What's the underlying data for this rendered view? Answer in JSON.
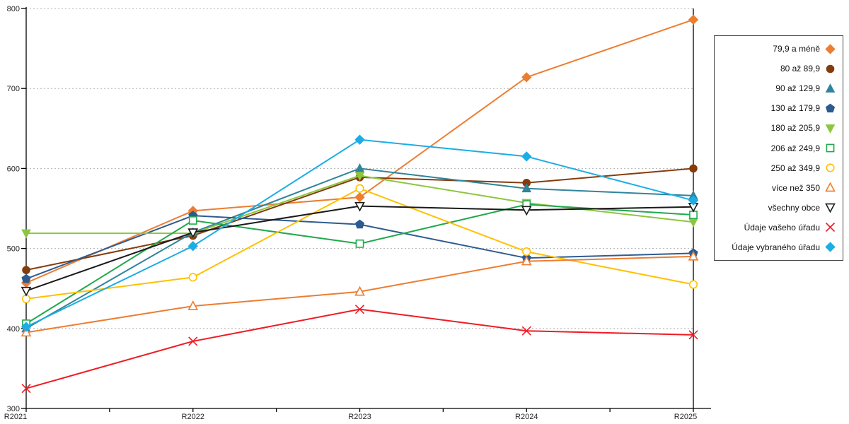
{
  "chart_data": {
    "type": "line",
    "title": "",
    "xlabel": "",
    "ylabel": "",
    "categories": [
      "R2021",
      "R2022",
      "R2023",
      "R2024",
      "R2025"
    ],
    "ylim": [
      300,
      800
    ],
    "y_ticks": [
      300,
      400,
      500,
      600,
      700,
      800
    ],
    "grid": "horizontal-dotted",
    "legend_position": "right",
    "series": [
      {
        "name": "79,9 a méně",
        "color": "#ED7D31",
        "marker": "diamond",
        "filled": true,
        "values": [
          457,
          547,
          564,
          714,
          786
        ]
      },
      {
        "name": "80 až 89,9",
        "color": "#843C0C",
        "marker": "circle",
        "filled": true,
        "values": [
          473,
          516,
          589,
          582,
          600
        ]
      },
      {
        "name": "90 až 129,9",
        "color": "#31849B",
        "marker": "triangle-up",
        "filled": true,
        "values": [
          400,
          520,
          600,
          575,
          566
        ]
      },
      {
        "name": "130 až 179,9",
        "color": "#2E5B8F",
        "marker": "pentagon",
        "filled": true,
        "values": [
          462,
          541,
          530,
          488,
          494
        ]
      },
      {
        "name": "180 až 205,9",
        "color": "#8CC63F",
        "marker": "triangle-down",
        "filled": true,
        "values": [
          519,
          519,
          591,
          557,
          533
        ]
      },
      {
        "name": "206 až 249,9",
        "color": "#21A94D",
        "marker": "square",
        "filled": false,
        "values": [
          406,
          535,
          506,
          555,
          542
        ]
      },
      {
        "name": "250 až 349,9",
        "color": "#FFC000",
        "marker": "circle",
        "filled": false,
        "values": [
          437,
          464,
          575,
          496,
          455
        ]
      },
      {
        "name": "více než 350",
        "color": "#ED7D31",
        "marker": "triangle-up",
        "filled": false,
        "values": [
          395,
          428,
          446,
          484,
          490
        ]
      },
      {
        "name": "všechny obce",
        "color": "#1A1A1A",
        "marker": "triangle-down",
        "filled": false,
        "values": [
          447,
          520,
          553,
          548,
          552
        ]
      },
      {
        "name": "Údaje vašeho úřadu",
        "color": "#EE1C25",
        "marker": "x",
        "filled": false,
        "values": [
          325,
          384,
          424,
          397,
          392
        ]
      },
      {
        "name": "Údaje vybraného úřadu",
        "color": "#1CADE4",
        "marker": "diamond",
        "filled": true,
        "values": [
          402,
          503,
          636,
          615,
          560
        ]
      }
    ],
    "colors": {
      "grid": "#B3B3B3",
      "axis": "#000000",
      "tick_text": "#262626",
      "background": "#FFFFFF"
    }
  }
}
